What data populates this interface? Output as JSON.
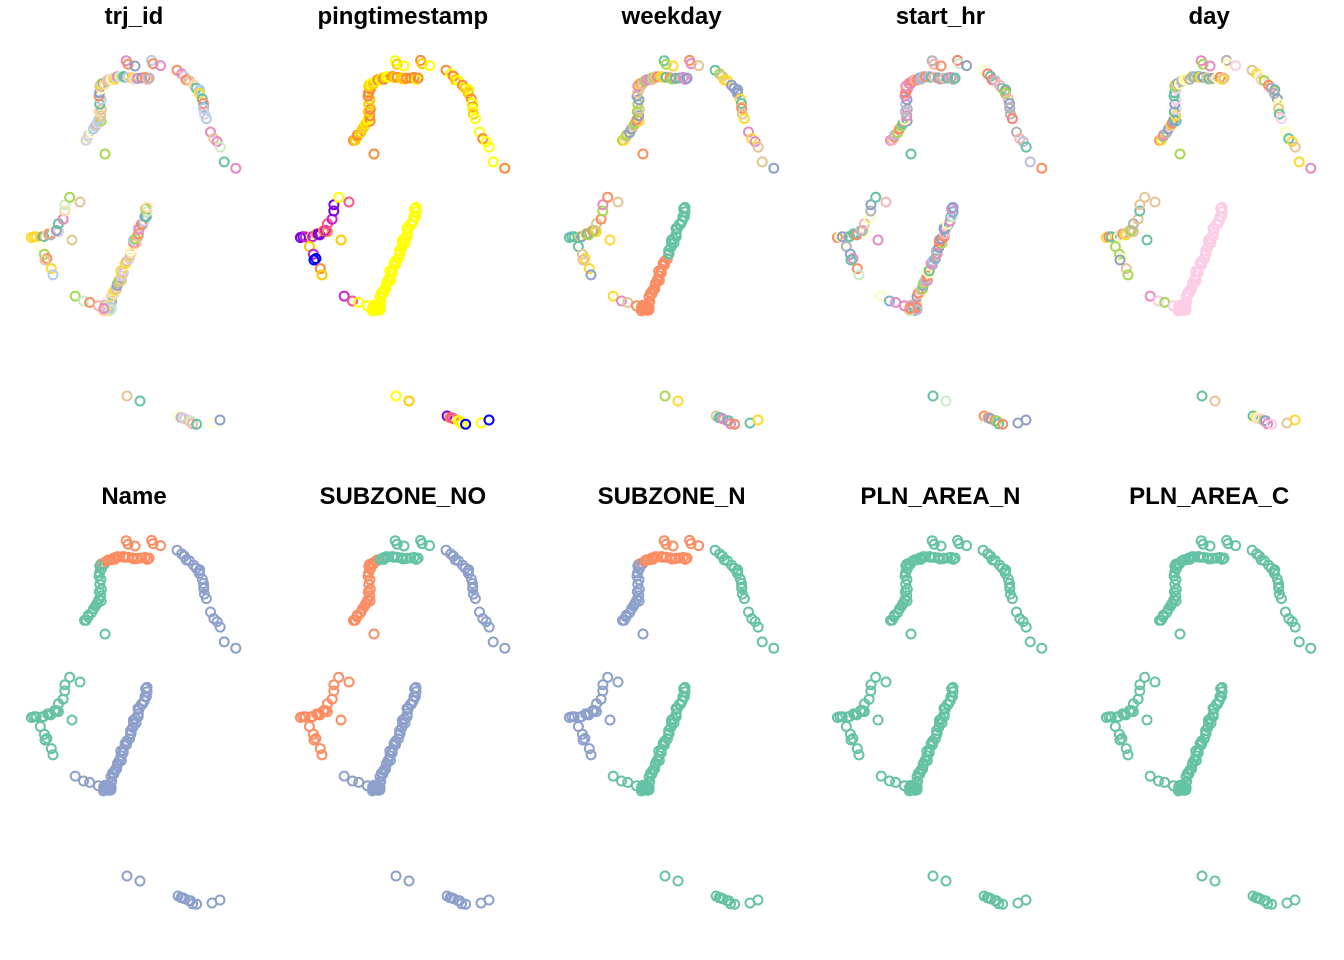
{
  "chart_data": {
    "type": "scatter",
    "layout": "small-multiples",
    "marker": "open-circle",
    "legend": "none",
    "axes": "hidden",
    "grid": false,
    "panels": [
      {
        "title": "trj_id",
        "palette": [
          "#66c2a5",
          "#fc8d62",
          "#8da0cb",
          "#e78ac3",
          "#a6d854",
          "#ffd92f",
          "#e5c494",
          "#b3b3b3",
          "#fbb4ae",
          "#b3cde3",
          "#ccebc5",
          "#decbe4",
          "#fed9a6",
          "#ffffcc"
        ]
      },
      {
        "title": "pingtimestamp",
        "palette": [
          "#0000ff",
          "#7b00e0",
          "#cc22cc",
          "#ff5588",
          "#ff8833",
          "#ffcc00",
          "#ffff00"
        ]
      },
      {
        "title": "weekday",
        "palette": [
          "#66c2a5",
          "#fc8d62",
          "#8da0cb",
          "#e78ac3",
          "#a6d854",
          "#ffd92f",
          "#e5c494"
        ]
      },
      {
        "title": "start_hr",
        "palette": [
          "#66c2a5",
          "#fc8d62",
          "#8da0cb",
          "#e78ac3",
          "#a6d854",
          "#ffffb3",
          "#bebada",
          "#fb8072",
          "#b3b3b3",
          "#ccebc5",
          "#fbb4ae",
          "#80b1d3"
        ]
      },
      {
        "title": "day",
        "palette": [
          "#66c2a5",
          "#fc8d62",
          "#8da0cb",
          "#e78ac3",
          "#a6d854",
          "#ffd92f",
          "#e5c494",
          "#b3b3b3",
          "#fccde5",
          "#ffffb3"
        ]
      },
      {
        "title": "Name",
        "palette": [
          "#66c2a5",
          "#fc8d62",
          "#8da0cb"
        ]
      },
      {
        "title": "SUBZONE_NO",
        "palette": [
          "#66c2a5",
          "#fc8d62",
          "#8da0cb"
        ]
      },
      {
        "title": "SUBZONE_N",
        "palette": [
          "#66c2a5",
          "#fc8d62",
          "#8da0cb"
        ]
      },
      {
        "title": "PLN_AREA_N",
        "palette": [
          "#66c2a5"
        ]
      },
      {
        "title": "PLN_AREA_C",
        "palette": [
          "#66c2a5"
        ]
      }
    ]
  }
}
